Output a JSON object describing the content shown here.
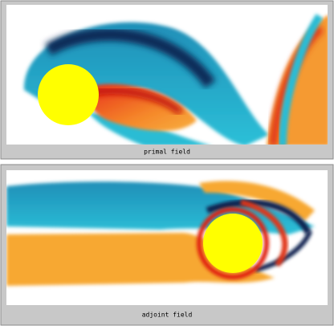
{
  "panels": [
    {
      "caption": "primal field"
    },
    {
      "caption": "adjoint field"
    }
  ]
}
